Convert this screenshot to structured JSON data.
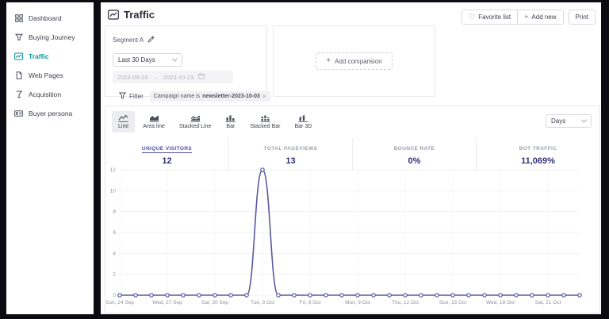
{
  "sidebar": {
    "active_color": "#12929c",
    "items": [
      {
        "label": "Dashboard",
        "icon": "grid-icon",
        "active": false
      },
      {
        "label": "Buying Journey",
        "icon": "funnel-icon",
        "active": false
      },
      {
        "label": "Traffic",
        "icon": "line-chart-icon",
        "active": true
      },
      {
        "label": "Web Pages",
        "icon": "page-icon",
        "active": false
      },
      {
        "label": "Acquisition",
        "icon": "acquisition-funnel-icon",
        "active": false
      },
      {
        "label": "Buyer persona",
        "icon": "id-card-icon",
        "active": false
      }
    ]
  },
  "header": {
    "title": "Traffic",
    "buttons": {
      "favorite": "Favorite list",
      "heart_glyph": "♡",
      "add_new": "Add new",
      "plus_glyph": "+",
      "print": "Print"
    }
  },
  "segment": {
    "name": "Segment A",
    "range_option": "Last 30 Days",
    "date_from": "2023-09-24",
    "arrow": "→",
    "date_to": "2023-10-23",
    "filter_label": "Filter",
    "filter_tag_prefix": "Campaign name is",
    "filter_tag_value": "newsletter-2023-10-03",
    "remove_glyph": "×"
  },
  "comparison": {
    "plus_glyph": "+",
    "add_label": "Add comparision"
  },
  "chart_controls": {
    "tabs": [
      {
        "label": "Line"
      },
      {
        "label": "Area line"
      },
      {
        "label": "Stacked Line"
      },
      {
        "label": "Bar"
      },
      {
        "label": "Stacked Bar"
      },
      {
        "label": "Bar 3D"
      }
    ],
    "active_tab": "Line",
    "interval_selected": "Days"
  },
  "metrics": [
    {
      "label": "UNIQUE VISITORS",
      "value": "12",
      "active": true
    },
    {
      "label": "TOTAL PAGEVIEWS",
      "value": "13",
      "active": false
    },
    {
      "label": "BOUNCE RATE",
      "value": "0%",
      "active": false
    },
    {
      "label": "BOT TRAFFIC",
      "value": "11,069%",
      "active": false
    }
  ],
  "chart_data": {
    "type": "line",
    "series": [
      {
        "name": "Unique visitors",
        "values": [
          0,
          0,
          0,
          0,
          0,
          0,
          0,
          0,
          0,
          12,
          0,
          0,
          0,
          0,
          0,
          0,
          0,
          0,
          0,
          0,
          0,
          0,
          0,
          0,
          0,
          0,
          0,
          0,
          0,
          0
        ]
      }
    ],
    "date_range": [
      "2023-09-24",
      "2023-10-23"
    ],
    "x_tick_labels": [
      "Sun, 24 Sep",
      "Wed, 27 Sep",
      "Sat, 30 Sep",
      "Tue, 3 Oct",
      "Fri, 6 Oct",
      "Mon, 9 Oct",
      "Thu, 12 Oct",
      "Sun, 15 Oct",
      "Wed, 18 Oct",
      "Sat, 21 Oct"
    ],
    "tick_every": 3,
    "y_ticks": [
      0,
      2,
      4,
      6,
      8,
      10,
      12
    ],
    "ylim": [
      0,
      12
    ],
    "line_color": "#5a589d",
    "marker": "circle",
    "grid": true,
    "legend": false
  }
}
